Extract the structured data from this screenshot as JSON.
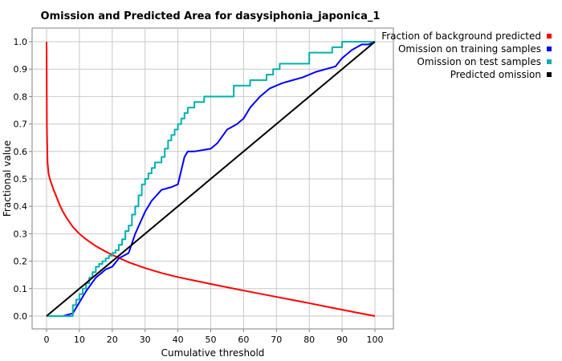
{
  "chart_data": {
    "type": "line",
    "title": "Omission and Predicted Area for dasysiphonia_japonica_1",
    "xlabel": "Cumulative threshold",
    "ylabel": "Fractional value",
    "xlim": [
      0,
      100
    ],
    "ylim": [
      0,
      1
    ],
    "xticks": [
      "0",
      "10",
      "20",
      "30",
      "40",
      "50",
      "60",
      "70",
      "80",
      "90",
      "100"
    ],
    "yticks": [
      "0.0",
      "0.1",
      "0.2",
      "0.3",
      "0.4",
      "0.5",
      "0.6",
      "0.7",
      "0.8",
      "0.9",
      "1.0"
    ],
    "grid": true,
    "legend_position": "right",
    "series": [
      {
        "name": "Fraction of background predicted",
        "color": "#ff0000",
        "x": [
          0,
          0.1,
          0.3,
          0.6,
          1,
          2,
          3,
          4,
          5,
          6,
          8,
          10,
          12,
          15,
          18,
          20,
          25,
          30,
          35,
          40,
          50,
          60,
          70,
          80,
          90,
          100
        ],
        "y": [
          1.0,
          0.68,
          0.56,
          0.52,
          0.5,
          0.465,
          0.435,
          0.405,
          0.38,
          0.36,
          0.325,
          0.3,
          0.28,
          0.255,
          0.235,
          0.223,
          0.196,
          0.175,
          0.157,
          0.142,
          0.117,
          0.093,
          0.07,
          0.047,
          0.023,
          0.0
        ]
      },
      {
        "name": "Omission on training samples",
        "color": "#0000ff",
        "x": [
          0,
          5,
          8,
          10,
          12,
          15,
          18,
          20,
          22,
          25,
          27,
          30,
          32,
          35,
          38,
          40,
          41,
          42,
          43,
          45,
          50,
          52,
          55,
          58,
          60,
          62,
          65,
          68,
          70,
          72,
          75,
          78,
          80,
          82,
          85,
          88,
          90,
          93,
          96,
          98,
          100
        ],
        "y": [
          0.0,
          0.0,
          0.01,
          0.05,
          0.09,
          0.14,
          0.17,
          0.18,
          0.21,
          0.23,
          0.3,
          0.38,
          0.42,
          0.46,
          0.47,
          0.48,
          0.53,
          0.58,
          0.6,
          0.6,
          0.61,
          0.63,
          0.68,
          0.7,
          0.72,
          0.76,
          0.8,
          0.83,
          0.84,
          0.85,
          0.86,
          0.87,
          0.88,
          0.89,
          0.9,
          0.91,
          0.94,
          0.97,
          0.99,
          0.99,
          1.0
        ]
      },
      {
        "name": "Omission on test samples",
        "color": "#00b0b0",
        "x": [
          0,
          7,
          8,
          9,
          10,
          11,
          12,
          13,
          14,
          15,
          16,
          17,
          18,
          19,
          20,
          21,
          22,
          23,
          24,
          25,
          26,
          27,
          28,
          29,
          30,
          31,
          32,
          33,
          35,
          36,
          37,
          38,
          39,
          40,
          41,
          42,
          43,
          45,
          48,
          52,
          57,
          60,
          62,
          67,
          69,
          71,
          75,
          80,
          85,
          87,
          88,
          90,
          100
        ],
        "y": [
          0.0,
          0.0,
          0.04,
          0.06,
          0.08,
          0.1,
          0.12,
          0.14,
          0.16,
          0.18,
          0.19,
          0.2,
          0.21,
          0.22,
          0.23,
          0.24,
          0.26,
          0.28,
          0.31,
          0.33,
          0.37,
          0.4,
          0.44,
          0.48,
          0.5,
          0.52,
          0.54,
          0.56,
          0.58,
          0.61,
          0.64,
          0.66,
          0.68,
          0.7,
          0.72,
          0.74,
          0.76,
          0.78,
          0.8,
          0.8,
          0.84,
          0.84,
          0.86,
          0.88,
          0.9,
          0.92,
          0.92,
          0.96,
          0.96,
          0.98,
          0.98,
          1.0,
          1.0
        ]
      },
      {
        "name": "Predicted omission",
        "color": "#000000",
        "x": [
          0,
          100
        ],
        "y": [
          0,
          1
        ]
      }
    ]
  }
}
